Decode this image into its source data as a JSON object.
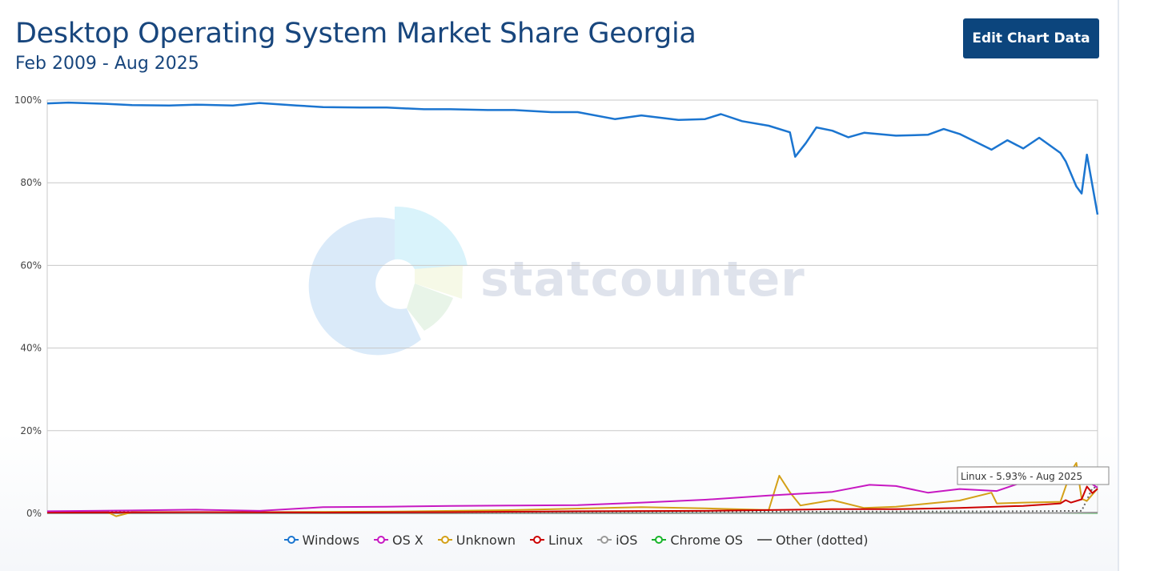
{
  "header": {
    "title": "Desktop Operating System Market Share Georgia",
    "subtitle": "Feb 2009 - Aug 2025",
    "edit_button_label": "Edit Chart Data"
  },
  "watermark": {
    "text": "statcounter"
  },
  "tooltip": {
    "text": "Linux - 5.93% - Aug 2025"
  },
  "legend": [
    {
      "label": "Windows",
      "color": "#1b75d0",
      "marker": "circle"
    },
    {
      "label": "OS X",
      "color": "#c719c2",
      "marker": "circle"
    },
    {
      "label": "Unknown",
      "color": "#d4a017",
      "marker": "circle"
    },
    {
      "label": "Linux",
      "color": "#cc0000",
      "marker": "circle"
    },
    {
      "label": "iOS",
      "color": "#999999",
      "marker": "circle"
    },
    {
      "label": "Chrome OS",
      "color": "#18b42a",
      "marker": "circle"
    },
    {
      "label": "Other (dotted)",
      "color": "#666666",
      "marker": "line"
    }
  ],
  "chart_data": {
    "type": "line",
    "x_range": [
      "2009-02",
      "2025-08"
    ],
    "ylim": [
      0,
      100
    ],
    "y_ticks": [
      "0%",
      "20%",
      "40%",
      "60%",
      "80%",
      "100%"
    ],
    "grid": true,
    "series": [
      {
        "name": "Windows",
        "color": "#1b75d0",
        "points": [
          [
            "2009-02",
            99.2
          ],
          [
            "2009-06",
            99.4
          ],
          [
            "2010-01",
            99.1
          ],
          [
            "2010-06",
            98.8
          ],
          [
            "2011-01",
            98.7
          ],
          [
            "2011-06",
            98.9
          ],
          [
            "2012-01",
            98.7
          ],
          [
            "2012-06",
            99.3
          ],
          [
            "2013-01",
            98.7
          ],
          [
            "2013-06",
            98.3
          ],
          [
            "2014-01",
            98.2
          ],
          [
            "2014-06",
            98.2
          ],
          [
            "2015-01",
            97.8
          ],
          [
            "2015-06",
            97.8
          ],
          [
            "2016-01",
            97.6
          ],
          [
            "2016-06",
            97.6
          ],
          [
            "2017-01",
            97.1
          ],
          [
            "2017-06",
            97.1
          ],
          [
            "2018-01",
            95.4
          ],
          [
            "2018-06",
            96.3
          ],
          [
            "2019-01",
            95.2
          ],
          [
            "2019-06",
            95.4
          ],
          [
            "2019-09",
            96.6
          ],
          [
            "2020-01",
            94.9
          ],
          [
            "2020-06",
            93.8
          ],
          [
            "2020-10",
            92.2
          ],
          [
            "2020-11",
            86.3
          ],
          [
            "2021-01",
            89.6
          ],
          [
            "2021-03",
            93.4
          ],
          [
            "2021-06",
            92.6
          ],
          [
            "2021-09",
            91.0
          ],
          [
            "2021-12",
            92.1
          ],
          [
            "2022-06",
            91.4
          ],
          [
            "2022-12",
            91.6
          ],
          [
            "2023-03",
            93.0
          ],
          [
            "2023-06",
            91.8
          ],
          [
            "2023-12",
            88.0
          ],
          [
            "2024-03",
            90.3
          ],
          [
            "2024-06",
            88.3
          ],
          [
            "2024-09",
            90.9
          ],
          [
            "2025-01",
            87.2
          ],
          [
            "2025-02",
            85.2
          ],
          [
            "2025-04",
            79.1
          ],
          [
            "2025-05",
            77.4
          ],
          [
            "2025-06",
            86.8
          ],
          [
            "2025-08",
            72.3
          ]
        ]
      },
      {
        "name": "OS X",
        "color": "#c719c2",
        "points": [
          [
            "2009-02",
            0.5
          ],
          [
            "2010-06",
            0.7
          ],
          [
            "2011-06",
            0.9
          ],
          [
            "2012-06",
            0.6
          ],
          [
            "2013-06",
            1.5
          ],
          [
            "2014-06",
            1.6
          ],
          [
            "2015-06",
            1.8
          ],
          [
            "2016-06",
            1.9
          ],
          [
            "2017-06",
            2.0
          ],
          [
            "2018-06",
            2.6
          ],
          [
            "2019-06",
            3.3
          ],
          [
            "2020-06",
            4.3
          ],
          [
            "2021-06",
            5.2
          ],
          [
            "2022-01",
            6.9
          ],
          [
            "2022-06",
            6.6
          ],
          [
            "2022-12",
            5.0
          ],
          [
            "2023-06",
            5.9
          ],
          [
            "2024-01",
            5.4
          ],
          [
            "2024-06",
            7.6
          ],
          [
            "2025-01",
            8.2
          ],
          [
            "2025-04",
            8.0
          ],
          [
            "2025-06",
            7.9
          ],
          [
            "2025-08",
            6.2
          ]
        ]
      },
      {
        "name": "Unknown",
        "color": "#d4a017",
        "points": [
          [
            "2009-02",
            0.3
          ],
          [
            "2010-01",
            0.5
          ],
          [
            "2010-03",
            -0.7
          ],
          [
            "2010-06",
            0.3
          ],
          [
            "2012-06",
            0.3
          ],
          [
            "2014-06",
            0.4
          ],
          [
            "2016-06",
            0.8
          ],
          [
            "2018-06",
            1.5
          ],
          [
            "2019-06",
            1.2
          ],
          [
            "2020-06",
            0.8
          ],
          [
            "2020-08",
            9.1
          ],
          [
            "2020-10",
            5.1
          ],
          [
            "2020-12",
            1.9
          ],
          [
            "2021-06",
            3.2
          ],
          [
            "2021-12",
            1.3
          ],
          [
            "2022-06",
            1.6
          ],
          [
            "2023-06",
            3.1
          ],
          [
            "2023-12",
            5.0
          ],
          [
            "2024-01",
            2.4
          ],
          [
            "2024-06",
            2.6
          ],
          [
            "2025-01",
            2.8
          ],
          [
            "2025-03",
            10.2
          ],
          [
            "2025-04",
            12.2
          ],
          [
            "2025-05",
            3.5
          ],
          [
            "2025-06",
            3.0
          ],
          [
            "2025-08",
            6.0
          ]
        ]
      },
      {
        "name": "Linux",
        "color": "#cc0000",
        "points": [
          [
            "2009-02",
            0.2
          ],
          [
            "2011-06",
            0.3
          ],
          [
            "2013-06",
            0.2
          ],
          [
            "2015-06",
            0.3
          ],
          [
            "2017-06",
            0.5
          ],
          [
            "2019-06",
            0.6
          ],
          [
            "2020-06",
            0.8
          ],
          [
            "2021-06",
            1.0
          ],
          [
            "2022-06",
            1.0
          ],
          [
            "2023-06",
            1.3
          ],
          [
            "2024-06",
            1.8
          ],
          [
            "2025-01",
            2.4
          ],
          [
            "2025-02",
            3.2
          ],
          [
            "2025-03",
            2.6
          ],
          [
            "2025-05",
            3.4
          ],
          [
            "2025-06",
            6.5
          ],
          [
            "2025-07",
            4.9
          ],
          [
            "2025-08",
            5.93
          ]
        ]
      },
      {
        "name": "iOS",
        "color": "#999999",
        "points": [
          [
            "2009-02",
            0.0
          ],
          [
            "2025-01",
            0.1
          ],
          [
            "2025-08",
            0.2
          ]
        ]
      },
      {
        "name": "Chrome OS",
        "color": "#18b42a",
        "points": [
          [
            "2009-02",
            0.0
          ],
          [
            "2024-06",
            0.1
          ],
          [
            "2025-08",
            0.1
          ]
        ]
      },
      {
        "name": "Other (dotted)",
        "color": "#666666",
        "dotted": true,
        "points": [
          [
            "2009-02",
            0.3
          ],
          [
            "2016-06",
            0.3
          ],
          [
            "2024-06",
            0.5
          ],
          [
            "2025-05",
            0.6
          ],
          [
            "2025-07",
            6.0
          ],
          [
            "2025-08",
            6.5
          ]
        ]
      }
    ]
  }
}
